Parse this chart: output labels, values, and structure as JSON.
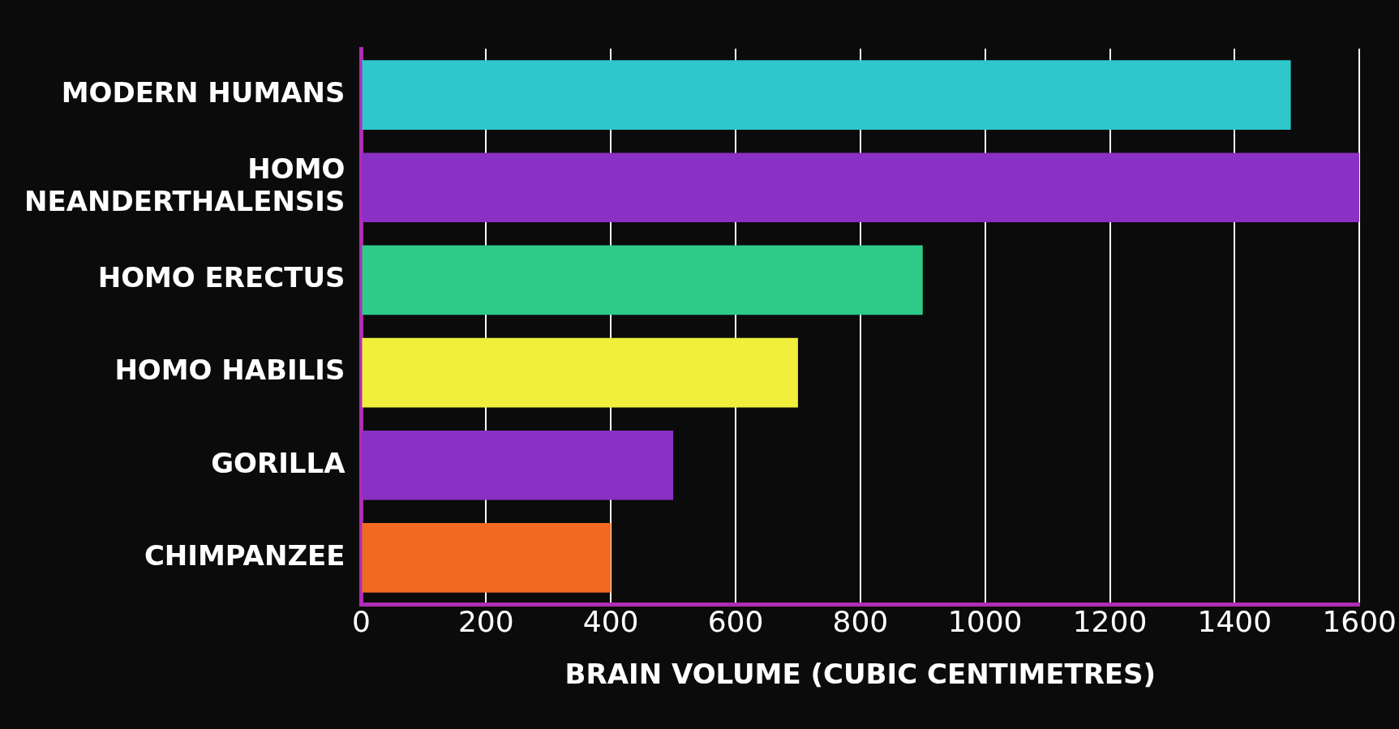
{
  "chart_data": {
    "type": "bar",
    "orientation": "horizontal",
    "xlabel": "BRAIN VOLUME (CUBIC CENTIMETRES)",
    "categories": [
      "MODERN HUMANS",
      "HOMO NEANDERTHALENSIS",
      "HOMO ERECTUS",
      "HOMO HABILIS",
      "GORILLA",
      "CHIMPANZEE"
    ],
    "values": [
      1490,
      1600,
      900,
      700,
      500,
      400
    ],
    "colors": [
      "#2ec8cc",
      "#8b30c4",
      "#2ecb88",
      "#f0f03c",
      "#8b30c4",
      "#f26a22"
    ],
    "xlim": [
      0,
      1600
    ],
    "xticks": [
      0,
      200,
      400,
      600,
      800,
      1000,
      1200,
      1400,
      1600
    ],
    "grid": "x"
  }
}
